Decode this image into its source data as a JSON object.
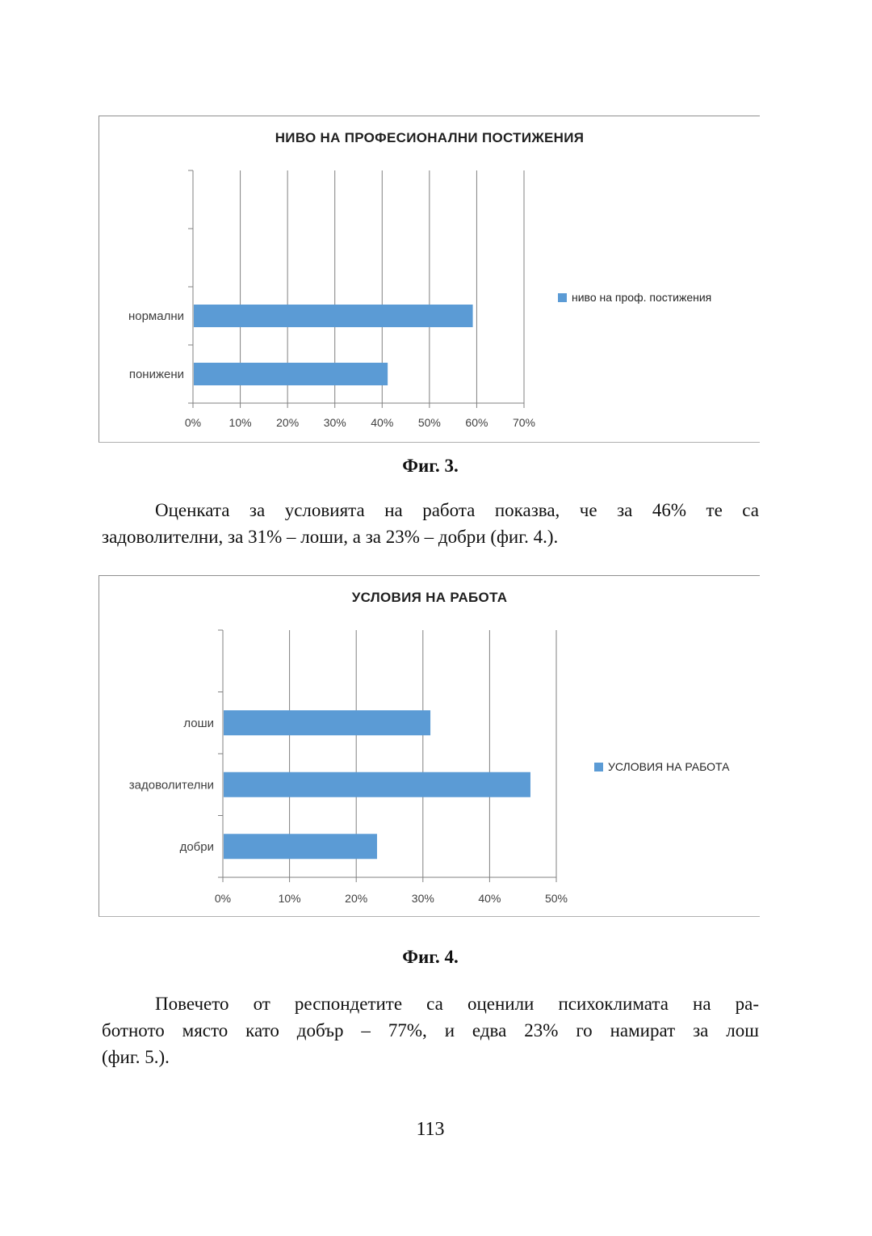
{
  "page": {
    "number": "113"
  },
  "colors": {
    "axis": "#808080",
    "grid": "#808080",
    "bar_blue": "#5b9bd5",
    "chart_text": "#3f3f3f"
  },
  "figures": [
    {
      "caption": "Фиг. 3."
    },
    {
      "caption": "Фиг. 4."
    }
  ],
  "paragraphs": [
    {
      "lines": [
        "Оценката за условията на работа показва, че за 46% те са",
        "задоволителни, за 31% – лоши, а за 23% – добри (фиг. 4.)."
      ]
    },
    {
      "lines": [
        "Повечето от респондетите са оценили психоклимата на ра-",
        "ботното място като добър – 77%, и едва 23% го намират за лош",
        "(фиг. 5.)."
      ]
    }
  ],
  "chart_data": [
    {
      "type": "bar",
      "orientation": "horizontal",
      "title": "НИВО НА ПРОФЕСИОНАЛНИ ПОСТИЖЕНИЯ",
      "categories": [
        "нормални",
        "понижени"
      ],
      "values": [
        59,
        41
      ],
      "unit": "%",
      "xlim": [
        0,
        70
      ],
      "xticks": [
        "0%",
        "10%",
        "20%",
        "30%",
        "40%",
        "50%",
        "60%",
        "70%"
      ],
      "legend": "ниво на проф. постижения",
      "legend_position": "right",
      "bar_color": "#5b9bd5",
      "grid": true
    },
    {
      "type": "bar",
      "orientation": "horizontal",
      "title": "УСЛОВИЯ НА РАБОТА",
      "categories": [
        "лоши",
        "задоволителни",
        "добри"
      ],
      "values": [
        31,
        46,
        23
      ],
      "unit": "%",
      "xlim": [
        0,
        50
      ],
      "xticks": [
        "0%",
        "10%",
        "20%",
        "30%",
        "40%",
        "50%"
      ],
      "legend": "УСЛОВИЯ НА РАБОТА",
      "legend_position": "right",
      "bar_color": "#5b9bd5",
      "grid": true
    }
  ]
}
